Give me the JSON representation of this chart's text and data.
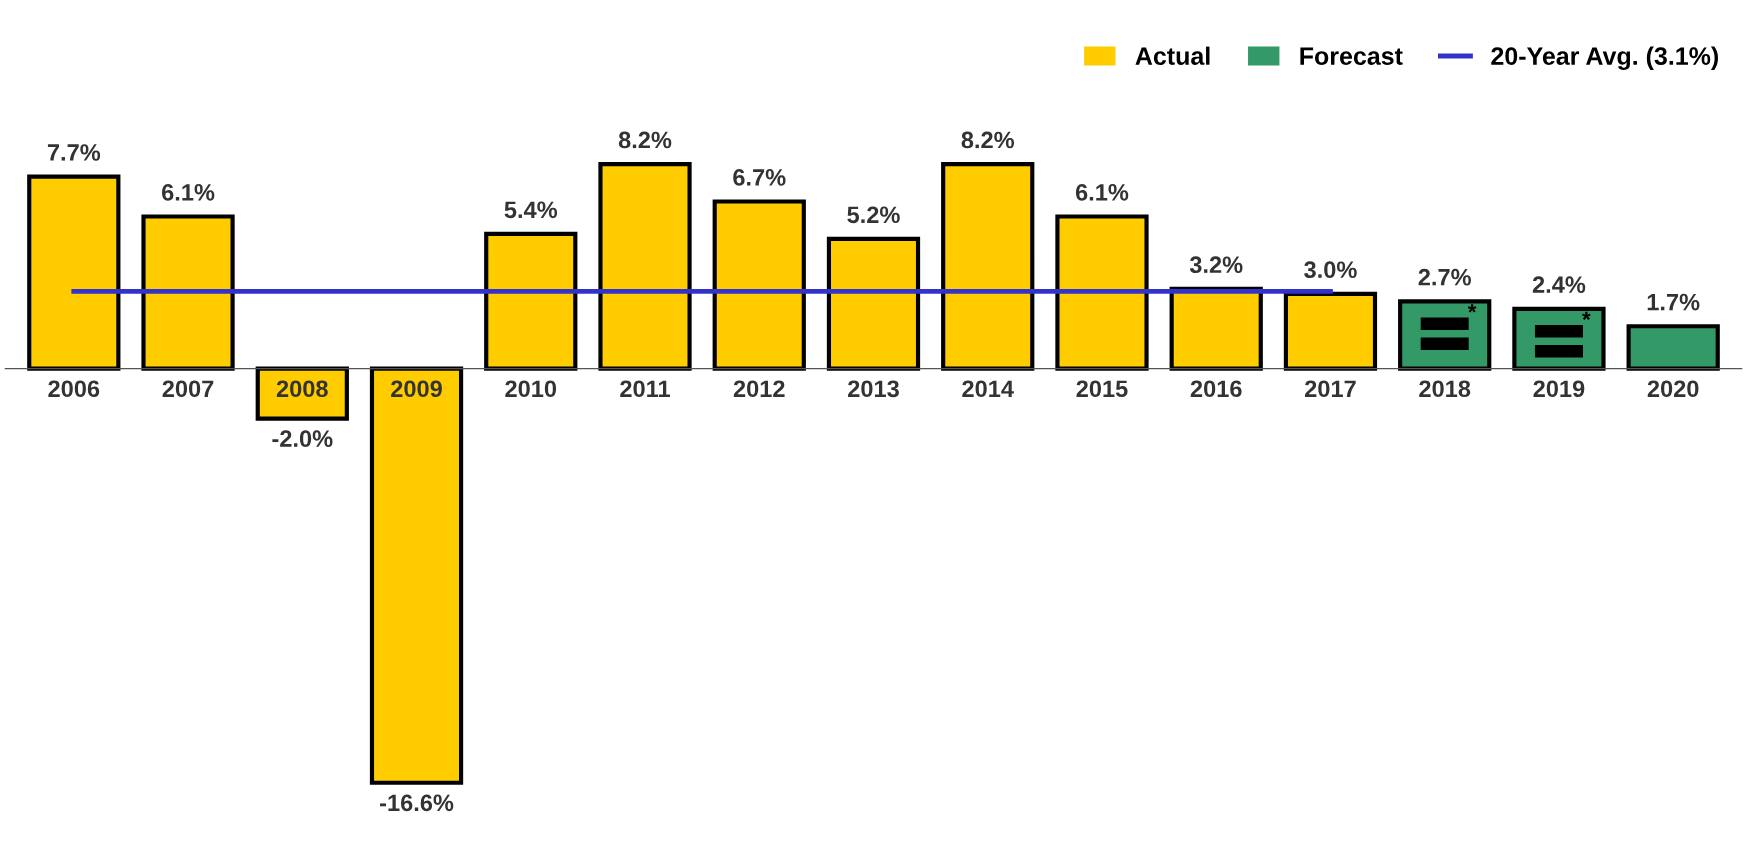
{
  "chart_data": {
    "type": "bar",
    "categories": [
      "2006",
      "2007",
      "2008",
      "2009",
      "2010",
      "2011",
      "2012",
      "2013",
      "2014",
      "2015",
      "2016",
      "2017",
      "2018",
      "2019",
      "2020"
    ],
    "series": [
      {
        "name": "Actual",
        "color": "#ffcc00",
        "values": [
          7.7,
          6.1,
          -2.0,
          -16.6,
          5.4,
          8.2,
          6.7,
          5.2,
          8.2,
          6.1,
          3.2,
          3.0,
          null,
          null,
          null
        ],
        "value_labels": [
          "7.7%",
          "6.1%",
          "-2.0%",
          "-16.6%",
          "5.4%",
          "8.2%",
          "6.7%",
          "5.2%",
          "8.2%",
          "6.1%",
          "3.2%",
          "3.0%",
          null,
          null,
          null
        ]
      },
      {
        "name": "Forecast",
        "color": "#339966",
        "values": [
          null,
          null,
          null,
          null,
          null,
          null,
          null,
          null,
          null,
          null,
          null,
          null,
          2.7,
          2.4,
          1.7
        ],
        "value_labels": [
          null,
          null,
          null,
          null,
          null,
          null,
          null,
          null,
          null,
          null,
          null,
          null,
          "2.7%",
          "2.4%",
          "1.7%"
        ]
      },
      {
        "name": "20-Year Avg. (3.1%)",
        "type": "line",
        "color": "#3333cc",
        "values": [
          3.1,
          3.1,
          3.1,
          3.1,
          3.1,
          3.1,
          3.1,
          3.1,
          3.1,
          3.1,
          3.1,
          3.1,
          null,
          null,
          null
        ]
      }
    ],
    "legend": "top right",
    "grid": false,
    "annotations": [
      "*",
      "*"
    ]
  }
}
